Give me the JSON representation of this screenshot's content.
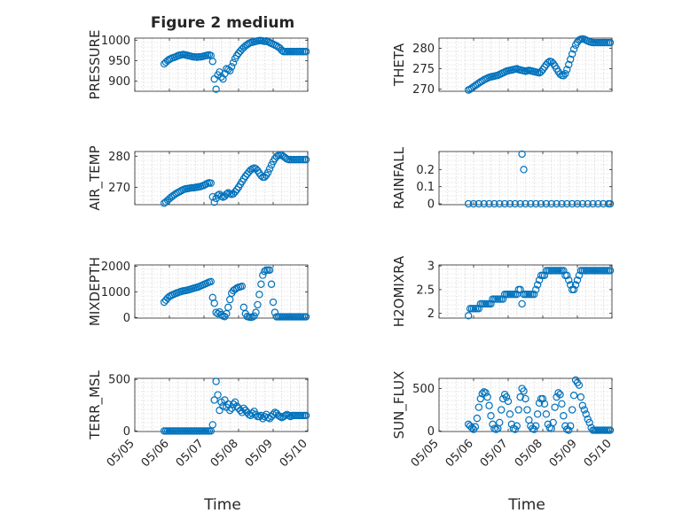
{
  "figure_title": "Figure 2 medium",
  "x_axis_label": "Time",
  "x_tick_labels": [
    "05/05",
    "05/06",
    "05/07",
    "05/08",
    "05/09",
    "05/10"
  ],
  "marker_color": "#0072BD",
  "chart_data": [
    {
      "type": "scatter",
      "title": "Figure 2 medium",
      "ylabel": "PRESSURE",
      "xlabel": "",
      "xlim": [
        5.0,
        10.0
      ],
      "ylim": [
        875,
        1005
      ],
      "yticks": [
        "900",
        "950",
        "1000"
      ],
      "grid": true,
      "x": [
        5.85,
        5.9,
        5.95,
        6.0,
        6.05,
        6.1,
        6.15,
        6.2,
        6.25,
        6.3,
        6.35,
        6.4,
        6.45,
        6.5,
        6.55,
        6.6,
        6.65,
        6.7,
        6.75,
        6.8,
        6.85,
        6.9,
        6.95,
        7.0,
        7.05,
        7.1,
        7.15,
        7.2,
        7.25,
        7.3,
        7.35,
        7.4,
        7.45,
        7.5,
        7.55,
        7.6,
        7.65,
        7.7,
        7.75,
        7.8,
        7.85,
        7.9,
        7.95,
        8.0,
        8.05,
        8.1,
        8.15,
        8.2,
        8.25,
        8.3,
        8.35,
        8.4,
        8.45,
        8.5,
        8.55,
        8.6,
        8.65,
        8.7,
        8.75,
        8.8,
        8.85,
        8.9,
        8.95,
        9.0,
        9.05,
        9.1,
        9.15,
        9.2,
        9.25,
        9.3,
        9.35,
        9.4,
        9.45,
        9.5,
        9.55,
        9.6,
        9.65,
        9.7,
        9.75,
        9.8,
        9.85,
        9.9,
        9.95
      ],
      "y": [
        942,
        946,
        950,
        953,
        955,
        957,
        958,
        960,
        962,
        963,
        964,
        965,
        964,
        963,
        962,
        961,
        960,
        959,
        959,
        958,
        959,
        959,
        960,
        961,
        962,
        963,
        964,
        962,
        948,
        905,
        880,
        915,
        922,
        910,
        905,
        918,
        930,
        928,
        925,
        935,
        945,
        955,
        962,
        968,
        973,
        978,
        982,
        986,
        989,
        992,
        994,
        995,
        996,
        997,
        998,
        999,
        999,
        998,
        997,
        998,
        996,
        994,
        992,
        990,
        988,
        986,
        983,
        980,
        975,
        972,
        972,
        972,
        972,
        972,
        972,
        972,
        972,
        972,
        972,
        972,
        972,
        972,
        972
      ]
    },
    {
      "type": "scatter",
      "ylabel": "THETA",
      "xlim": [
        5.0,
        10.0
      ],
      "ylim": [
        269.5,
        282.5
      ],
      "yticks": [
        "270",
        "275",
        "280"
      ],
      "grid": true,
      "x": [
        5.85,
        5.9,
        5.95,
        6.0,
        6.05,
        6.1,
        6.15,
        6.2,
        6.25,
        6.3,
        6.35,
        6.4,
        6.45,
        6.5,
        6.55,
        6.6,
        6.65,
        6.7,
        6.75,
        6.8,
        6.85,
        6.9,
        6.95,
        7.0,
        7.05,
        7.1,
        7.15,
        7.2,
        7.25,
        7.3,
        7.35,
        7.4,
        7.45,
        7.5,
        7.55,
        7.6,
        7.65,
        7.7,
        7.75,
        7.8,
        7.85,
        7.9,
        7.95,
        8.0,
        8.05,
        8.1,
        8.15,
        8.2,
        8.25,
        8.3,
        8.35,
        8.4,
        8.45,
        8.5,
        8.55,
        8.6,
        8.65,
        8.7,
        8.75,
        8.8,
        8.85,
        8.9,
        8.95,
        9.0,
        9.05,
        9.1,
        9.15,
        9.2,
        9.25,
        9.3,
        9.35,
        9.4,
        9.45,
        9.5,
        9.55,
        9.6,
        9.65,
        9.7,
        9.75,
        9.8,
        9.85,
        9.9,
        9.95
      ],
      "y": [
        269.8,
        270.0,
        270.3,
        270.6,
        270.9,
        271.2,
        271.5,
        271.8,
        272.0,
        272.3,
        272.5,
        272.7,
        272.9,
        273.0,
        273.1,
        273.2,
        273.3,
        273.4,
        273.6,
        273.8,
        274.0,
        274.2,
        274.4,
        274.5,
        274.6,
        274.7,
        274.8,
        274.9,
        275.0,
        274.8,
        274.7,
        274.6,
        274.5,
        274.4,
        274.5,
        274.6,
        274.5,
        274.4,
        274.3,
        274.2,
        274.1,
        274.0,
        274.3,
        274.8,
        275.4,
        276.0,
        276.5,
        276.8,
        276.7,
        276.3,
        275.7,
        275.0,
        274.3,
        273.7,
        273.4,
        273.3,
        273.8,
        274.8,
        276.0,
        277.3,
        278.6,
        279.8,
        280.8,
        281.5,
        282.0,
        282.2,
        282.3,
        282.2,
        282.0,
        281.8,
        281.6,
        281.5,
        281.4,
        281.4,
        281.4,
        281.4,
        281.4,
        281.4,
        281.4,
        281.4,
        281.4,
        281.4,
        281.4
      ]
    },
    {
      "type": "scatter",
      "ylabel": "AIR_TEMP",
      "xlim": [
        5.0,
        10.0
      ],
      "ylim": [
        264.5,
        281.5
      ],
      "yticks": [
        "270",
        "280"
      ],
      "grid": true,
      "x": [
        5.85,
        5.9,
        5.95,
        6.0,
        6.05,
        6.1,
        6.15,
        6.2,
        6.25,
        6.3,
        6.35,
        6.4,
        6.45,
        6.5,
        6.55,
        6.6,
        6.65,
        6.7,
        6.75,
        6.8,
        6.85,
        6.9,
        6.95,
        7.0,
        7.05,
        7.1,
        7.15,
        7.2,
        7.25,
        7.3,
        7.35,
        7.4,
        7.45,
        7.5,
        7.55,
        7.6,
        7.65,
        7.7,
        7.75,
        7.8,
        7.85,
        7.9,
        7.95,
        8.0,
        8.05,
        8.1,
        8.15,
        8.2,
        8.25,
        8.3,
        8.35,
        8.4,
        8.45,
        8.5,
        8.55,
        8.6,
        8.65,
        8.7,
        8.75,
        8.8,
        8.85,
        8.9,
        8.95,
        9.0,
        9.05,
        9.1,
        9.15,
        9.2,
        9.25,
        9.3,
        9.35,
        9.4,
        9.45,
        9.5,
        9.55,
        9.6,
        9.65,
        9.7,
        9.75,
        9.8,
        9.85,
        9.9,
        9.95
      ],
      "y": [
        265.0,
        265.4,
        265.9,
        266.4,
        266.9,
        267.3,
        267.7,
        268.1,
        268.4,
        268.7,
        269.0,
        269.3,
        269.5,
        269.6,
        269.7,
        269.8,
        269.9,
        269.9,
        270.0,
        270.1,
        270.2,
        270.3,
        270.5,
        270.7,
        271.0,
        271.3,
        271.5,
        271.4,
        267.0,
        265.3,
        266.5,
        267.5,
        267.8,
        267.2,
        266.9,
        267.2,
        267.9,
        268.3,
        268.0,
        267.8,
        268.0,
        268.6,
        269.3,
        270.1,
        271.0,
        271.9,
        272.8,
        273.6,
        274.3,
        275.0,
        275.6,
        276.0,
        276.2,
        276.0,
        275.4,
        274.6,
        273.8,
        273.3,
        273.3,
        273.9,
        274.8,
        276.0,
        277.2,
        278.3,
        279.2,
        279.9,
        280.2,
        280.4,
        280.3,
        279.9,
        279.5,
        279.1,
        278.9,
        278.9,
        278.9,
        278.9,
        278.9,
        278.9,
        278.9,
        278.9,
        278.9,
        278.9,
        278.9
      ]
    },
    {
      "type": "scatter",
      "ylabel": "RAINFALL",
      "xlim": [
        5.0,
        10.0
      ],
      "ylim": [
        -0.005,
        0.305
      ],
      "yticks": [
        "0",
        "0.1",
        "0.2"
      ],
      "grid": true,
      "x": [
        5.85,
        6.0,
        6.15,
        6.3,
        6.45,
        6.6,
        6.75,
        6.9,
        7.05,
        7.2,
        7.35,
        7.4,
        7.45,
        7.5,
        7.65,
        7.8,
        7.95,
        8.1,
        8.25,
        8.4,
        8.55,
        8.7,
        8.85,
        9.0,
        9.15,
        9.3,
        9.45,
        9.6,
        9.75,
        9.9,
        9.95
      ],
      "y": [
        0,
        0,
        0,
        0,
        0,
        0,
        0,
        0,
        0,
        0,
        0,
        0.29,
        0.2,
        0,
        0,
        0,
        0,
        0,
        0,
        0,
        0,
        0,
        0,
        0,
        0,
        0,
        0,
        0,
        0,
        0,
        0
      ]
    },
    {
      "type": "scatter",
      "ylabel": "MIXDEPTH",
      "xlim": [
        5.0,
        10.0
      ],
      "ylim": [
        -20,
        2050
      ],
      "yticks": [
        "0",
        "1000",
        "2000"
      ],
      "grid": true,
      "x": [
        5.85,
        5.9,
        5.95,
        6.0,
        6.05,
        6.1,
        6.15,
        6.2,
        6.25,
        6.3,
        6.35,
        6.4,
        6.45,
        6.5,
        6.55,
        6.6,
        6.65,
        6.7,
        6.75,
        6.8,
        6.85,
        6.9,
        6.95,
        7.0,
        7.05,
        7.1,
        7.15,
        7.2,
        7.25,
        7.3,
        7.35,
        7.4,
        7.45,
        7.5,
        7.55,
        7.6,
        7.65,
        7.7,
        7.75,
        7.8,
        7.85,
        7.9,
        7.95,
        8.0,
        8.05,
        8.1,
        8.15,
        8.2,
        8.25,
        8.3,
        8.35,
        8.4,
        8.45,
        8.5,
        8.55,
        8.6,
        8.65,
        8.7,
        8.75,
        8.8,
        8.85,
        8.9,
        8.95,
        9.0,
        9.05,
        9.1,
        9.15,
        9.2,
        9.25,
        9.3,
        9.35,
        9.4,
        9.45,
        9.5,
        9.55,
        9.6,
        9.65,
        9.7,
        9.75,
        9.8,
        9.85,
        9.9,
        9.95
      ],
      "y": [
        600,
        680,
        760,
        820,
        860,
        890,
        920,
        950,
        970,
        1000,
        1020,
        1040,
        1050,
        1060,
        1080,
        1100,
        1120,
        1140,
        1160,
        1180,
        1200,
        1230,
        1260,
        1290,
        1320,
        1350,
        1380,
        1400,
        780,
        560,
        200,
        150,
        220,
        120,
        60,
        40,
        150,
        400,
        700,
        950,
        1050,
        1100,
        1150,
        1180,
        1200,
        1220,
        400,
        150,
        40,
        20,
        10,
        20,
        60,
        200,
        500,
        900,
        1300,
        1650,
        1800,
        1850,
        1850,
        1850,
        1300,
        600,
        200,
        30,
        30,
        30,
        30,
        30,
        30,
        30,
        30,
        30,
        30,
        30,
        30,
        30,
        30,
        30,
        30,
        30,
        30
      ]
    },
    {
      "type": "scatter",
      "ylabel": "H2OMIXRA",
      "xlim": [
        5.0,
        10.0
      ],
      "ylim": [
        1.9,
        3.02
      ],
      "yticks": [
        "2",
        "2.5",
        "3"
      ],
      "grid": true,
      "x": [
        5.85,
        5.9,
        5.95,
        6.0,
        6.05,
        6.1,
        6.15,
        6.2,
        6.25,
        6.3,
        6.35,
        6.4,
        6.45,
        6.5,
        6.55,
        6.6,
        6.65,
        6.7,
        6.75,
        6.8,
        6.85,
        6.9,
        6.95,
        7.0,
        7.05,
        7.1,
        7.15,
        7.2,
        7.25,
        7.3,
        7.35,
        7.4,
        7.45,
        7.5,
        7.55,
        7.6,
        7.65,
        7.7,
        7.75,
        7.8,
        7.85,
        7.9,
        7.95,
        8.0,
        8.05,
        8.1,
        8.15,
        8.2,
        8.25,
        8.3,
        8.35,
        8.4,
        8.45,
        8.5,
        8.55,
        8.6,
        8.65,
        8.7,
        8.75,
        8.8,
        8.85,
        8.9,
        8.95,
        9.0,
        9.05,
        9.1,
        9.15,
        9.2,
        9.25,
        9.3,
        9.35,
        9.4,
        9.45,
        9.5,
        9.55,
        9.6,
        9.65,
        9.7,
        9.75,
        9.8,
        9.85,
        9.9,
        9.95
      ],
      "y": [
        1.95,
        2.1,
        2.1,
        2.1,
        2.1,
        2.1,
        2.1,
        2.2,
        2.2,
        2.2,
        2.2,
        2.2,
        2.2,
        2.2,
        2.3,
        2.3,
        2.3,
        2.3,
        2.3,
        2.3,
        2.3,
        2.4,
        2.4,
        2.4,
        2.4,
        2.4,
        2.4,
        2.4,
        2.4,
        2.5,
        2.5,
        2.2,
        2.4,
        2.4,
        2.4,
        2.4,
        2.4,
        2.4,
        2.4,
        2.5,
        2.6,
        2.7,
        2.8,
        2.8,
        2.8,
        2.9,
        2.9,
        2.9,
        2.9,
        2.9,
        2.9,
        2.9,
        2.9,
        2.9,
        2.9,
        2.9,
        2.8,
        2.8,
        2.7,
        2.6,
        2.5,
        2.5,
        2.6,
        2.7,
        2.8,
        2.9,
        2.9,
        2.9,
        2.9,
        2.9,
        2.9,
        2.9,
        2.9,
        2.9,
        2.9,
        2.9,
        2.9,
        2.9,
        2.9,
        2.9,
        2.9,
        2.9,
        2.9
      ]
    },
    {
      "type": "scatter",
      "ylabel": "TERR_MSL",
      "xlabel": "Time",
      "xlim": [
        5.0,
        10.0
      ],
      "ylim": [
        -5,
        510
      ],
      "yticks": [
        "0",
        "500"
      ],
      "grid": true,
      "x": [
        5.85,
        5.9,
        5.95,
        6.0,
        6.05,
        6.1,
        6.15,
        6.2,
        6.25,
        6.3,
        6.35,
        6.4,
        6.45,
        6.5,
        6.55,
        6.6,
        6.65,
        6.7,
        6.75,
        6.8,
        6.85,
        6.9,
        6.95,
        7.0,
        7.05,
        7.1,
        7.15,
        7.2,
        7.25,
        7.3,
        7.35,
        7.4,
        7.45,
        7.5,
        7.55,
        7.6,
        7.65,
        7.7,
        7.75,
        7.8,
        7.85,
        7.9,
        7.95,
        8.0,
        8.05,
        8.1,
        8.15,
        8.2,
        8.25,
        8.3,
        8.35,
        8.4,
        8.45,
        8.5,
        8.55,
        8.6,
        8.65,
        8.7,
        8.75,
        8.8,
        8.85,
        8.9,
        8.95,
        9.0,
        9.05,
        9.1,
        9.15,
        9.2,
        9.25,
        9.3,
        9.35,
        9.4,
        9.45,
        9.5,
        9.55,
        9.6,
        9.65,
        9.7,
        9.75,
        9.8,
        9.85,
        9.9,
        9.95
      ],
      "y": [
        0,
        0,
        0,
        0,
        0,
        0,
        0,
        0,
        0,
        0,
        0,
        0,
        0,
        0,
        0,
        0,
        0,
        0,
        0,
        0,
        0,
        0,
        0,
        0,
        0,
        0,
        0,
        0,
        60,
        300,
        480,
        350,
        200,
        280,
        240,
        300,
        230,
        260,
        200,
        220,
        260,
        280,
        240,
        220,
        200,
        180,
        220,
        200,
        180,
        160,
        150,
        170,
        190,
        160,
        140,
        140,
        150,
        120,
        140,
        160,
        130,
        120,
        140,
        160,
        180,
        170,
        150,
        140,
        130,
        140,
        150,
        160,
        150,
        140,
        150,
        150,
        150,
        150,
        150,
        150,
        150,
        150,
        150
      ]
    },
    {
      "type": "scatter",
      "ylabel": "SUN_FLUX",
      "xlabel": "Time",
      "xlim": [
        5.0,
        10.0
      ],
      "ylim": [
        -5,
        620
      ],
      "yticks": [
        "0",
        "500"
      ],
      "grid": true,
      "x": [
        5.85,
        5.9,
        5.95,
        6.0,
        6.05,
        6.1,
        6.15,
        6.2,
        6.25,
        6.3,
        6.35,
        6.4,
        6.45,
        6.5,
        6.55,
        6.6,
        6.65,
        6.7,
        6.75,
        6.8,
        6.85,
        6.9,
        6.95,
        7.0,
        7.05,
        7.1,
        7.15,
        7.2,
        7.25,
        7.3,
        7.35,
        7.4,
        7.45,
        7.5,
        7.55,
        7.6,
        7.65,
        7.7,
        7.75,
        7.8,
        7.85,
        7.9,
        7.95,
        8.0,
        8.05,
        8.1,
        8.15,
        8.2,
        8.25,
        8.3,
        8.35,
        8.4,
        8.45,
        8.5,
        8.55,
        8.6,
        8.65,
        8.7,
        8.75,
        8.8,
        8.85,
        8.9,
        8.95,
        9.0,
        9.05,
        9.1,
        9.15,
        9.2,
        9.25,
        9.3,
        9.35,
        9.4,
        9.45,
        9.5,
        9.55,
        9.6,
        9.65,
        9.7,
        9.75,
        9.8,
        9.85,
        9.9,
        9.95
      ],
      "y": [
        80,
        60,
        40,
        20,
        50,
        150,
        280,
        380,
        440,
        460,
        450,
        400,
        300,
        180,
        80,
        30,
        20,
        30,
        100,
        250,
        380,
        430,
        400,
        350,
        200,
        80,
        30,
        20,
        60,
        250,
        400,
        500,
        470,
        380,
        250,
        130,
        60,
        30,
        20,
        60,
        200,
        330,
        380,
        380,
        320,
        200,
        80,
        40,
        30,
        100,
        280,
        400,
        450,
        430,
        320,
        180,
        60,
        20,
        10,
        60,
        250,
        420,
        600,
        570,
        540,
        400,
        300,
        250,
        200,
        140,
        100,
        40,
        10,
        10,
        10,
        10,
        10,
        10,
        10,
        10,
        10,
        10,
        10
      ]
    }
  ]
}
